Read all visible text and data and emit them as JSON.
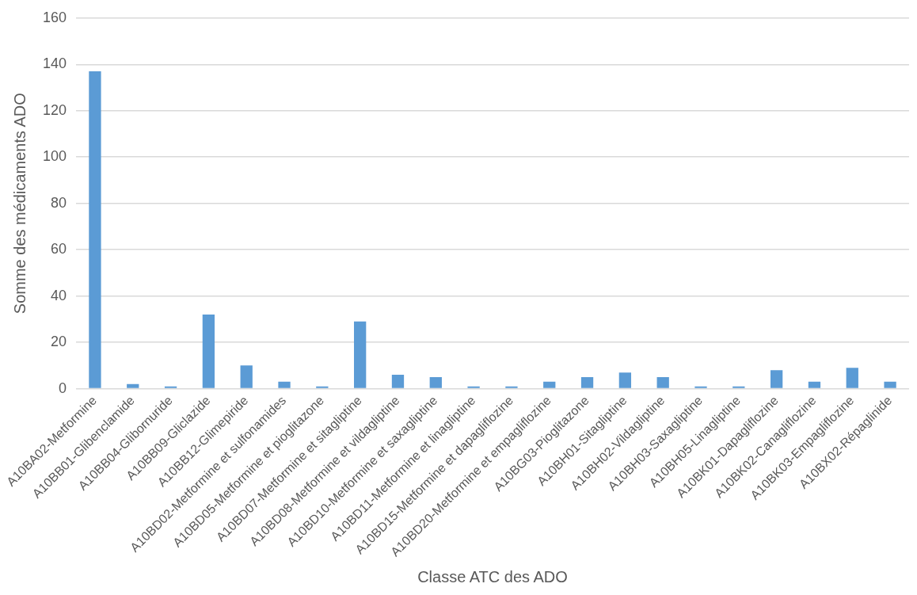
{
  "chart_data": {
    "type": "bar",
    "xlabel": "Classe ATC des ADO",
    "ylabel": "Somme des médicaments ADO",
    "categories": [
      "A10BA02-Metformine",
      "A10BB01-Glibenclamide",
      "A10BB04-Glibornuride",
      "A10BB09-Gliclazide",
      "A10BB12-Glimepiride",
      "A10BD02-Metformine et sulfonamides",
      "A10BD05-Metformine et pioglitazone",
      "A10BD07-Metformine et sitagliptine",
      "A10BD08-Metformine et vildagliptine",
      "A10BD10-Metformine et saxagliptine",
      "A10BD11-Metformine et linagliptine",
      "A10BD15-Metformine et dapagliflozine",
      "A10BD20-Metformine et empagliflozine",
      "A10BG03-Pioglitazone",
      "A10BH01-Sitagliptine",
      "A10BH02-Vildagliptine",
      "A10BH03-Saxagliptine",
      "A10BH05-Linagliptine",
      "A10BK01-Dapagliflozine",
      "A10BK02-Canagliflozine",
      "A10BK03-Empagliflozine",
      "A10BX02-Répaglinide"
    ],
    "values": [
      137,
      2,
      1,
      32,
      10,
      3,
      1,
      29,
      6,
      5,
      1,
      1,
      3,
      5,
      7,
      5,
      1,
      1,
      8,
      3,
      9,
      3
    ],
    "color": "#5b9bd5",
    "ylim": [
      0,
      160
    ],
    "yticks": [
      0,
      20,
      40,
      60,
      80,
      100,
      120,
      140,
      160
    ],
    "grid": "y",
    "legend": false
  }
}
